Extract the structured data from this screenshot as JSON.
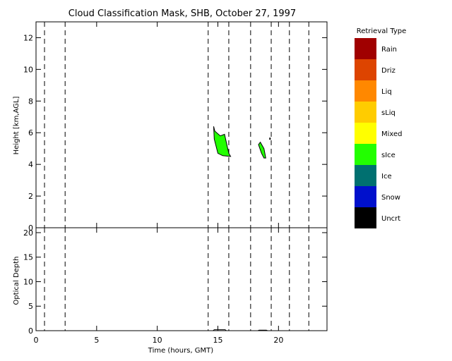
{
  "chart_data": {
    "type": "heatmap",
    "title": "Cloud Classification Mask, SHB, October 27, 1997",
    "xlabel": "Time (hours, GMT)",
    "xlim": [
      0,
      24
    ],
    "x_ticks": [
      0,
      5,
      10,
      15,
      20
    ],
    "dashed_time_markers": [
      0.7,
      2.4,
      14.2,
      15.9,
      17.7,
      19.4,
      20.9,
      22.5
    ],
    "panels": [
      {
        "name": "cloud-mask",
        "ylabel": "Height [km,AGL]",
        "ylim": [
          0,
          13
        ],
        "y_ticks": [
          0,
          2,
          4,
          6,
          8,
          10,
          12
        ],
        "features": [
          {
            "class": "sIce",
            "polygon": [
              [
                14.65,
                6.4
              ],
              [
                14.75,
                6.1
              ],
              [
                15.2,
                5.8
              ],
              [
                15.55,
                5.9
              ],
              [
                15.9,
                4.7
              ],
              [
                16.05,
                4.5
              ],
              [
                15.4,
                4.55
              ],
              [
                15.0,
                4.7
              ],
              [
                14.7,
                5.6
              ]
            ]
          },
          {
            "class": "sIce",
            "polygon": [
              [
                18.35,
                5.25
              ],
              [
                18.5,
                5.4
              ],
              [
                18.8,
                5.0
              ],
              [
                18.95,
                4.4
              ],
              [
                18.8,
                4.4
              ],
              [
                18.6,
                4.7
              ]
            ]
          }
        ],
        "isolated_points": [
          {
            "time": 19.3,
            "height_km": 5.6
          }
        ]
      },
      {
        "name": "optical-depth",
        "ylabel": "Optical Depth",
        "ylim": [
          0,
          21
        ],
        "y_ticks": [
          0,
          5,
          10,
          15,
          20
        ],
        "series": [
          {
            "time": [
              0,
              14.6,
              14.7,
              15.6,
              15.7,
              18.3,
              18.4,
              19.0,
              19.1,
              24
            ],
            "values": [
              0,
              0,
              0.2,
              0.2,
              0,
              0,
              0.1,
              0.1,
              0,
              0
            ]
          }
        ]
      }
    ],
    "legend": {
      "title": "Retrieval Type",
      "placement": "right",
      "entries": [
        {
          "label": "Rain",
          "color": "#a00000"
        },
        {
          "label": "Driz",
          "color": "#dd4400"
        },
        {
          "label": "Liq",
          "color": "#ff8800"
        },
        {
          "label": "sLiq",
          "color": "#ffcc00"
        },
        {
          "label": "Mixed",
          "color": "#ffff00"
        },
        {
          "label": "sIce",
          "color": "#22ff00"
        },
        {
          "label": "Ice",
          "color": "#007070"
        },
        {
          "label": "Snow",
          "color": "#0010cc"
        },
        {
          "label": "Uncrt",
          "color": "#000000"
        }
      ]
    }
  }
}
